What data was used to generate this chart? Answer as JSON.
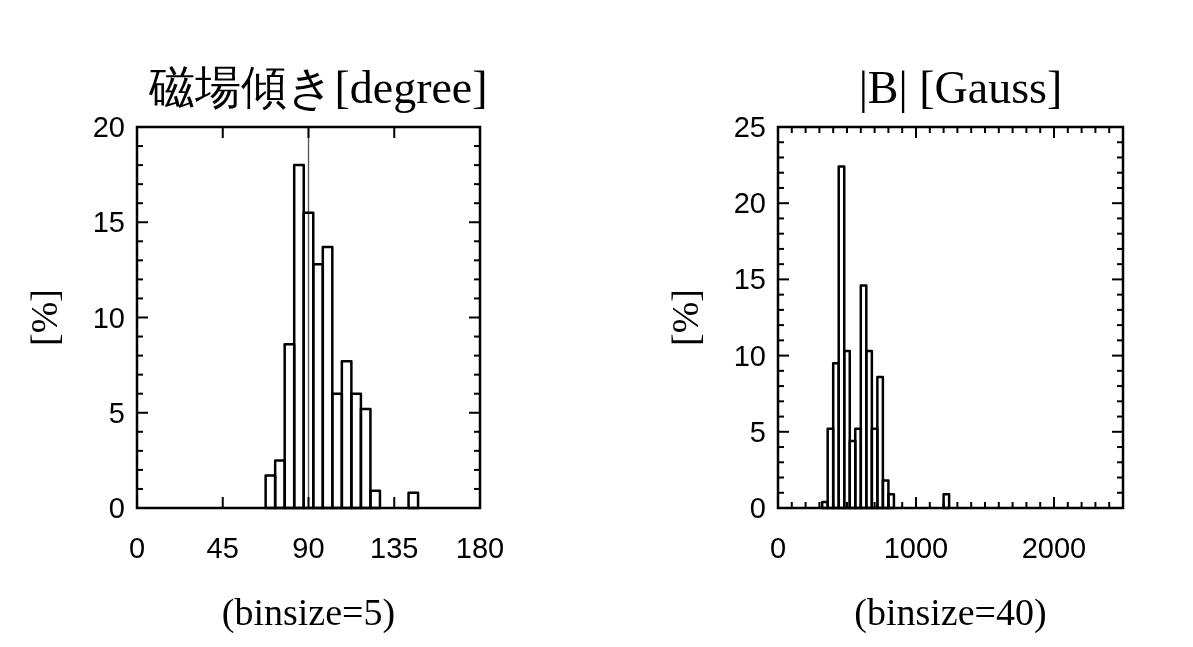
{
  "chart_data": [
    {
      "type": "histogram",
      "title": "磁場傾き[degree]",
      "xlabel": "(binsize=5)",
      "ylabel": "[%]",
      "color": "#000000",
      "grid": false,
      "bins": [
        67.5,
        72.5,
        77.5,
        82.5,
        87.5,
        92.5,
        97.5,
        102.5,
        107.5,
        112.5,
        117.5,
        122.5,
        127.5,
        132.5,
        137.5,
        142.5,
        147.5
      ],
      "values": [
        1.7,
        2.5,
        8.6,
        18.0,
        15.5,
        12.8,
        13.7,
        6.0,
        7.7,
        6.0,
        5.2,
        0.9,
        0,
        0,
        0,
        0.8
      ],
      "xlim": [
        0,
        180
      ],
      "xticks": [
        0,
        45,
        90,
        135,
        180
      ],
      "ylim": [
        0,
        20
      ],
      "yticks": [
        0,
        {
          "value": 1,
          "label": null
        },
        {
          "value": 2,
          "label": null
        },
        {
          "value": 3,
          "label": null
        },
        {
          "value": 4,
          "label": null
        },
        5,
        {
          "value": 6,
          "label": null
        },
        {
          "value": 7,
          "label": null
        },
        {
          "value": 8,
          "label": null
        },
        {
          "value": 9,
          "label": null
        },
        10,
        {
          "value": 11,
          "label": null
        },
        {
          "value": 12,
          "label": null
        },
        {
          "value": 13,
          "label": null
        },
        {
          "value": 14,
          "label": null
        },
        15,
        {
          "value": 16,
          "label": null
        },
        {
          "value": 17,
          "label": null
        },
        {
          "value": 18,
          "label": null
        },
        {
          "value": 19,
          "label": null
        },
        20
      ],
      "ref_lines": [
        {
          "axis": "x",
          "value": 90,
          "color": "#555555"
        }
      ]
    },
    {
      "type": "histogram",
      "title": "|B| [Gauss]",
      "xlabel": "(binsize=40)",
      "ylabel": "[%]",
      "color": "#000000",
      "grid": false,
      "bins": [
        320,
        360,
        400,
        440,
        480,
        520,
        560,
        600,
        640,
        680,
        720,
        760,
        800,
        840,
        880,
        920,
        960,
        1000,
        1040,
        1080,
        1120,
        1160,
        1200,
        1240
      ],
      "values": [
        0.4,
        5.2,
        9.5,
        22.4,
        10.3,
        4.4,
        5.2,
        14.6,
        10.3,
        5.2,
        8.6,
        1.8,
        0.9,
        0,
        0,
        0,
        0,
        0,
        0,
        0,
        0,
        0,
        0.9
      ],
      "xlim": [
        0,
        2500
      ],
      "xticks": [
        0,
        {
          "value": 100,
          "label": null
        },
        {
          "value": 200,
          "label": null
        },
        {
          "value": 300,
          "label": null
        },
        {
          "value": 400,
          "label": null
        },
        {
          "value": 500,
          "label": null
        },
        {
          "value": 600,
          "label": null
        },
        {
          "value": 700,
          "label": null
        },
        {
          "value": 800,
          "label": null
        },
        {
          "value": 900,
          "label": null
        },
        1000,
        {
          "value": 1100,
          "label": null
        },
        {
          "value": 1200,
          "label": null
        },
        {
          "value": 1300,
          "label": null
        },
        {
          "value": 1400,
          "label": null
        },
        {
          "value": 1500,
          "label": null
        },
        {
          "value": 1600,
          "label": null
        },
        {
          "value": 1700,
          "label": null
        },
        {
          "value": 1800,
          "label": null
        },
        {
          "value": 1900,
          "label": null
        },
        2000,
        {
          "value": 2100,
          "label": null
        },
        {
          "value": 2200,
          "label": null
        },
        {
          "value": 2300,
          "label": null
        },
        {
          "value": 2400,
          "label": null
        },
        {
          "value": 2500,
          "label": null
        }
      ],
      "ylim": [
        0,
        25
      ],
      "yticks": [
        0,
        {
          "value": 1,
          "label": null
        },
        {
          "value": 2,
          "label": null
        },
        {
          "value": 3,
          "label": null
        },
        {
          "value": 4,
          "label": null
        },
        5,
        {
          "value": 6,
          "label": null
        },
        {
          "value": 7,
          "label": null
        },
        {
          "value": 8,
          "label": null
        },
        {
          "value": 9,
          "label": null
        },
        10,
        {
          "value": 11,
          "label": null
        },
        {
          "value": 12,
          "label": null
        },
        {
          "value": 13,
          "label": null
        },
        {
          "value": 14,
          "label": null
        },
        15,
        {
          "value": 16,
          "label": null
        },
        {
          "value": 17,
          "label": null
        },
        {
          "value": 18,
          "label": null
        },
        {
          "value": 19,
          "label": null
        },
        20,
        {
          "value": 21,
          "label": null
        },
        {
          "value": 22,
          "label": null
        },
        {
          "value": 23,
          "label": null
        },
        {
          "value": 24,
          "label": null
        },
        25
      ]
    }
  ]
}
